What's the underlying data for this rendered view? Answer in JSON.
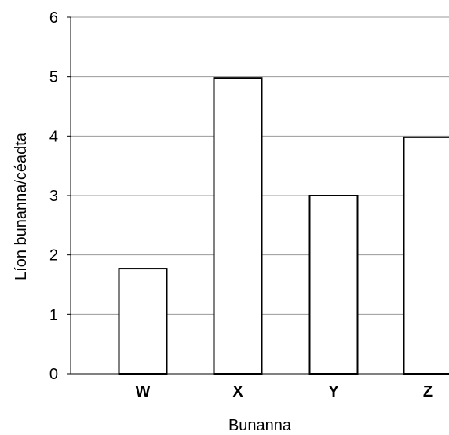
{
  "chart_data": {
    "type": "bar",
    "categories": [
      "W",
      "X",
      "Y",
      "Z"
    ],
    "values": [
      1.77,
      4.98,
      3.0,
      3.98
    ],
    "xlabel": "Bunanna",
    "ylabel": "Líon bunanna/céadta",
    "ylim": [
      0,
      6
    ],
    "yticks": [
      "0",
      "1",
      "2",
      "3",
      "4",
      "5",
      "6"
    ],
    "grid": true,
    "colors": {
      "bar_fill": "#ffffff",
      "bar_stroke": "#000000",
      "grid": "#999999",
      "axis": "#000000"
    }
  }
}
